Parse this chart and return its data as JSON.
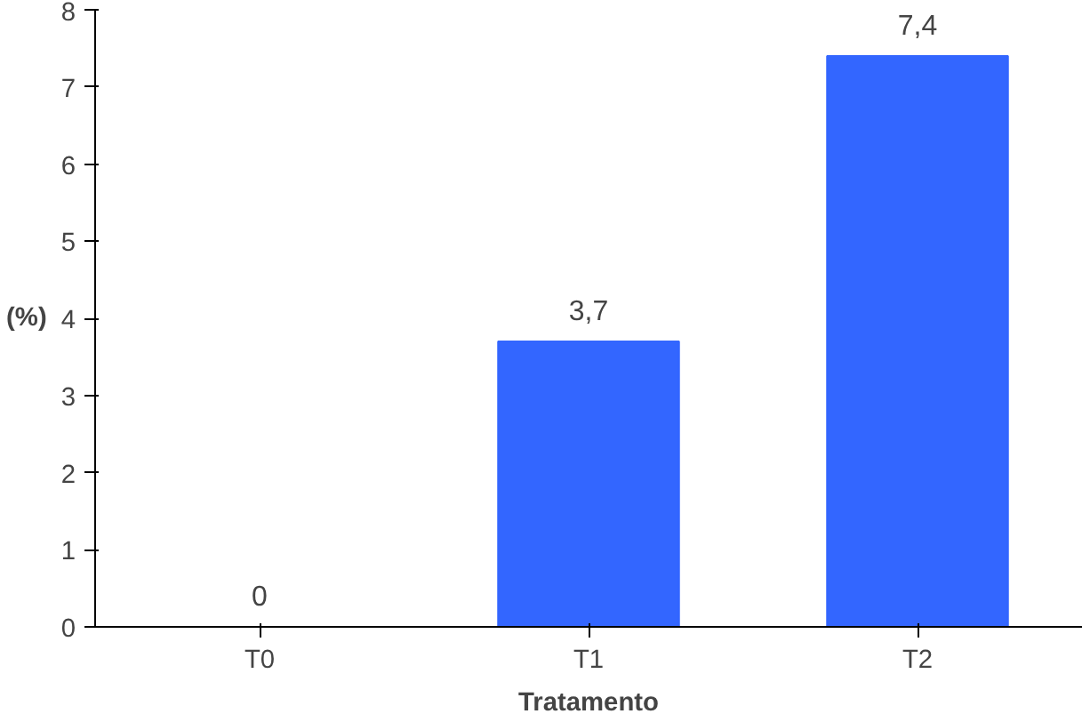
{
  "chart_data": {
    "type": "bar",
    "xlabel": "Tratamento",
    "ylabel": "(%)",
    "categories": [
      "T0",
      "T1",
      "T2"
    ],
    "values": [
      0,
      3.7,
      7.4
    ],
    "value_labels": [
      "0",
      "3,7",
      "7,4"
    ],
    "color": "#3366ff",
    "ylim": [
      0,
      8
    ],
    "yticks": [
      0,
      1,
      2,
      3,
      4,
      5,
      6,
      7,
      8
    ],
    "grid": false
  }
}
